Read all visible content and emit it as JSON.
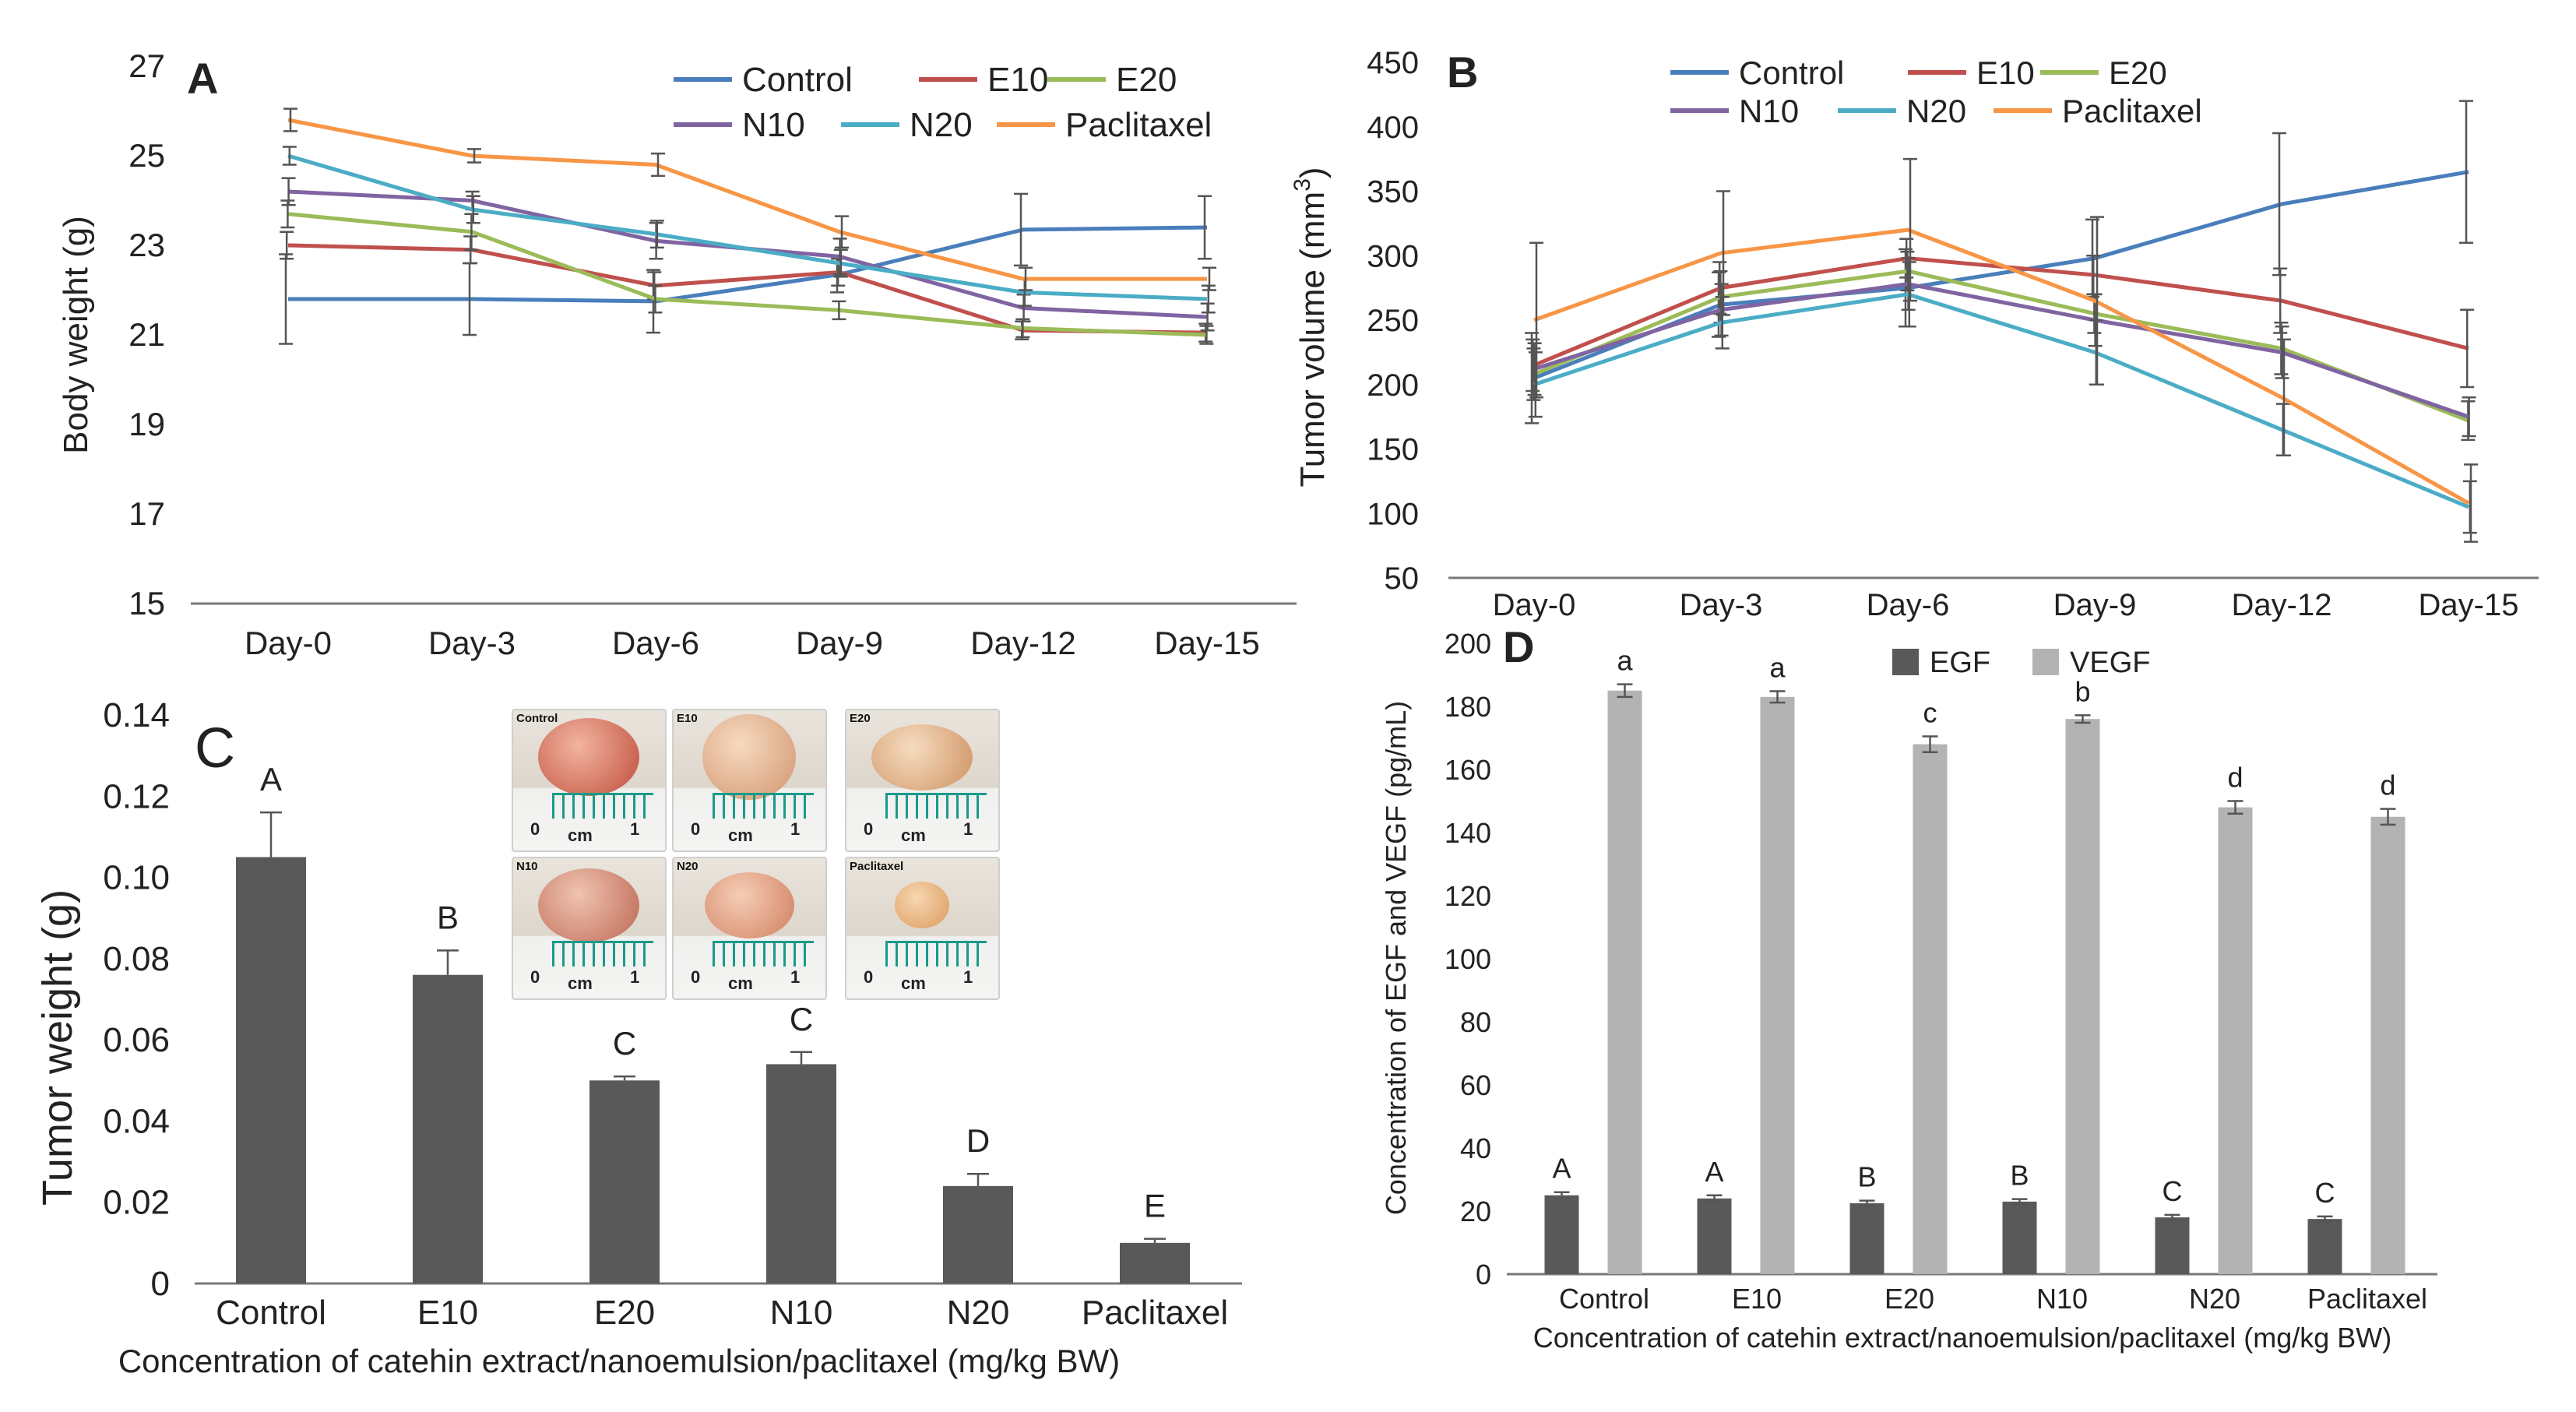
{
  "chart_data": [
    {
      "panel": "A",
      "type": "line",
      "panel_label": "A",
      "title": "",
      "xlabel": "",
      "ylabel": "Body weight (g)",
      "categories": [
        "Day-0",
        "Day-3",
        "Day-6",
        "Day-9",
        "Day-12",
        "Day-15"
      ],
      "ylim": [
        15,
        27
      ],
      "yticks": [
        15,
        17,
        19,
        21,
        23,
        25,
        27
      ],
      "series": [
        {
          "name": "Control",
          "color": "#4a7ebb",
          "values": [
            21.8,
            21.8,
            21.75,
            22.35,
            23.35,
            23.4
          ],
          "errors": [
            1.0,
            0.8,
            0.7,
            0.4,
            0.8,
            0.7
          ]
        },
        {
          "name": "E10",
          "color": "#c0504d",
          "values": [
            23.0,
            22.9,
            22.1,
            22.4,
            21.1,
            21.05
          ],
          "errors": [
            0.3,
            0.3,
            0.3,
            0.3,
            0.2,
            0.2
          ]
        },
        {
          "name": "E20",
          "color": "#9bbb59",
          "values": [
            23.7,
            23.3,
            21.8,
            21.55,
            21.15,
            21.0
          ],
          "errors": [
            0.3,
            0.4,
            0.3,
            0.2,
            0.2,
            0.2
          ]
        },
        {
          "name": "N10",
          "color": "#8064a2",
          "values": [
            24.2,
            24.0,
            23.1,
            22.75,
            21.6,
            21.4
          ],
          "errors": [
            0.3,
            0.2,
            0.4,
            0.4,
            0.3,
            0.3
          ]
        },
        {
          "name": "N20",
          "color": "#4bacc6",
          "values": [
            25.0,
            23.8,
            23.25,
            22.6,
            21.95,
            21.8
          ],
          "errors": [
            0.2,
            0.3,
            0.3,
            0.3,
            0.3,
            0.3
          ]
        },
        {
          "name": "Paclitaxel",
          "color": "#f79646",
          "values": [
            25.8,
            25.0,
            24.8,
            23.3,
            22.25,
            22.25
          ],
          "errors": [
            0.25,
            0.15,
            0.25,
            0.35,
            0.25,
            0.25
          ]
        }
      ],
      "legend": "top-right"
    },
    {
      "panel": "B",
      "type": "line",
      "panel_label": "B",
      "title": "",
      "xlabel": "",
      "ylabel_main": "Tumor volume (mm",
      "ylabel_sup": "3",
      "ylabel_close": ")",
      "categories": [
        "Day-0",
        "Day-3",
        "Day-6",
        "Day-9",
        "Day-12",
        "Day-15"
      ],
      "ylim": [
        50,
        450
      ],
      "yticks": [
        50,
        100,
        150,
        200,
        250,
        300,
        350,
        400,
        450
      ],
      "series": [
        {
          "name": "Control",
          "color": "#4a7ebb",
          "values": [
            205,
            262,
            275,
            298,
            340,
            365
          ],
          "errors": [
            35,
            25,
            30,
            30,
            55,
            55
          ]
        },
        {
          "name": "E10",
          "color": "#c0504d",
          "values": [
            215,
            275,
            298,
            285,
            265,
            228
          ],
          "errors": [
            20,
            20,
            15,
            15,
            25,
            30
          ]
        },
        {
          "name": "E20",
          "color": "#9bbb59",
          "values": [
            208,
            268,
            288,
            255,
            228,
            172
          ],
          "errors": [
            20,
            20,
            15,
            15,
            20,
            15
          ]
        },
        {
          "name": "N10",
          "color": "#8064a2",
          "values": [
            212,
            258,
            278,
            250,
            225,
            175
          ],
          "errors": [
            20,
            20,
            20,
            20,
            20,
            15
          ]
        },
        {
          "name": "N20",
          "color": "#4bacc6",
          "values": [
            200,
            248,
            270,
            225,
            165,
            105
          ],
          "errors": [
            25,
            20,
            25,
            25,
            20,
            20
          ]
        },
        {
          "name": "Paclitaxel",
          "color": "#f79646",
          "values": [
            250,
            302,
            320,
            265,
            190,
            108
          ],
          "errors": [
            60,
            48,
            55,
            65,
            45,
            30
          ]
        }
      ],
      "legend": "top"
    },
    {
      "panel": "C",
      "type": "bar",
      "panel_label": "C",
      "title": "",
      "xlabel": "Concentration of catehin extract/nanoemulsion/paclitaxel  (mg/kg BW)",
      "ylabel": "Tumor weight (g)",
      "categories": [
        "Control",
        "E10",
        "E20",
        "N10",
        "N20",
        "Paclitaxel"
      ],
      "values": [
        0.105,
        0.076,
        0.05,
        0.054,
        0.024,
        0.01
      ],
      "errors": [
        0.011,
        0.006,
        0.001,
        0.003,
        0.003,
        0.001
      ],
      "significance_letters": [
        "A",
        "B",
        "C",
        "C",
        "D",
        "E"
      ],
      "ylim": [
        0,
        0.14
      ],
      "yticks": [
        "0",
        "0.02",
        "0.04",
        "0.06",
        "0.08",
        "0.10",
        "0.12",
        "0.14"
      ],
      "bar_color": "#595959",
      "inset_photos": [
        {
          "label": "Control",
          "scale_zero": "0",
          "scale_unit": "cm",
          "scale_one": "1"
        },
        {
          "label": "E10",
          "scale_zero": "0",
          "scale_unit": "cm",
          "scale_one": "1"
        },
        {
          "label": "E20",
          "scale_zero": "0",
          "scale_unit": "cm",
          "scale_one": "1"
        },
        {
          "label": "N10",
          "scale_zero": "0",
          "scale_unit": "cm",
          "scale_one": "1"
        },
        {
          "label": "N20",
          "scale_zero": "0",
          "scale_unit": "cm",
          "scale_one": "1"
        },
        {
          "label": "Paclitaxel",
          "scale_zero": "0",
          "scale_unit": "cm",
          "scale_one": "1"
        }
      ]
    },
    {
      "panel": "D",
      "type": "bar",
      "panel_label": "D",
      "title": "",
      "xlabel": "Concentration of catehin extract/nanoemulsion/paclitaxel  (mg/kg BW)",
      "ylabel": "Concentration of EGF and VEGF (pg/mL)",
      "categories": [
        "Control",
        "E10",
        "E20",
        "N10",
        "N20",
        "Paclitaxel"
      ],
      "ylim": [
        0,
        200
      ],
      "yticks": [
        0,
        20,
        40,
        60,
        80,
        100,
        120,
        140,
        160,
        180,
        200
      ],
      "series": [
        {
          "name": "EGF",
          "color": "#595959",
          "values": [
            25,
            24,
            22.5,
            23,
            18,
            17.5
          ],
          "errors": [
            1,
            1,
            0.8,
            0.8,
            0.8,
            0.8
          ],
          "letters": [
            "A",
            "A",
            "B",
            "B",
            "C",
            "C"
          ]
        },
        {
          "name": "VEGF",
          "color": "#b3b3b3",
          "values": [
            185,
            183,
            168,
            176,
            148,
            145
          ],
          "errors": [
            2,
            1.8,
            2.5,
            1.2,
            2,
            2.5
          ],
          "letters": [
            "a",
            "a",
            "c",
            "b",
            "d",
            "d"
          ]
        }
      ],
      "legend": "top"
    }
  ]
}
